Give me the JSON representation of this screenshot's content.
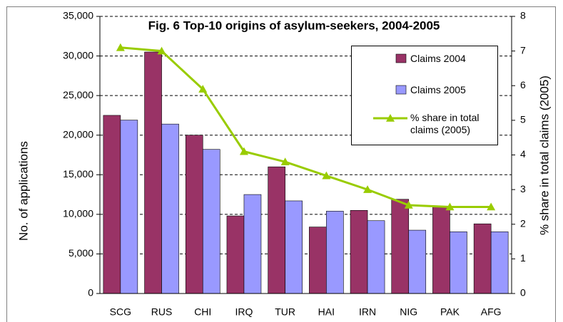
{
  "chart_data": {
    "type": "bar",
    "title": "Fig. 6 Top-10 origins of asylum-seekers, 2004-2005",
    "y_label": "No. of applications",
    "y2_label": "% share in total claims (2005)",
    "categories": [
      "SCG",
      "RUS",
      "CHI",
      "IRQ",
      "TUR",
      "HAI",
      "IRN",
      "NIG",
      "PAK",
      "AFG"
    ],
    "series": [
      {
        "name": "Claims 2004",
        "color": "#993366",
        "type": "bar",
        "values": [
          22500,
          30500,
          20000,
          9800,
          16000,
          8400,
          10500,
          11900,
          11000,
          8800
        ]
      },
      {
        "name": "Claims 2005",
        "color": "#9999ff",
        "type": "bar",
        "values": [
          21900,
          21400,
          18200,
          12500,
          11700,
          10400,
          9200,
          8000,
          7800,
          7800
        ]
      },
      {
        "name": "% share in total claims (2005)",
        "color": "#99cc00",
        "type": "line",
        "axis": "y2",
        "values": [
          7.1,
          7.0,
          5.9,
          4.1,
          3.8,
          3.4,
          3.0,
          2.55,
          2.5,
          2.5
        ]
      }
    ],
    "ylim": [
      0,
      35000
    ],
    "yticks": [
      0,
      {
        "value": 5000,
        "label": "5,000"
      },
      {
        "value": 10000,
        "label": "10,000"
      },
      {
        "value": 15000,
        "label": "15,000"
      },
      {
        "value": 20000,
        "label": "20,000"
      },
      {
        "value": 25000,
        "label": "25,000"
      },
      {
        "value": 30000,
        "label": "30,000"
      },
      {
        "value": 35000,
        "label": "35,000"
      }
    ],
    "y2lim": [
      0,
      8
    ],
    "y2ticks": [
      0,
      1,
      2,
      3,
      4,
      5,
      6,
      7,
      8
    ],
    "grid": true,
    "legend": "top-right"
  }
}
